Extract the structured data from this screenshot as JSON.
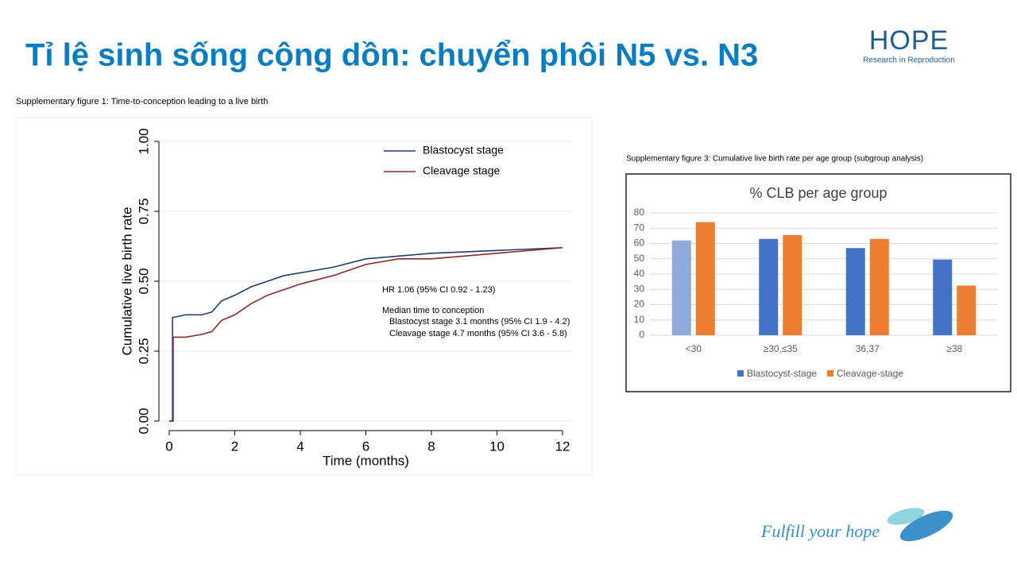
{
  "header": {
    "title": "Tỉ lệ sinh sống cộng dồn: chuyển phôi N5 vs. N3",
    "logo": "HOPE",
    "logo_subtitle": "Research in Reproduction"
  },
  "footer": {
    "slogan": "Fulfill your hope"
  },
  "chart_data": [
    {
      "type": "line",
      "caption": "Supplementary figure 1: Time-to-conception leading to a live birth",
      "x_label": "Time (months)",
      "y_label": "Cumulative live birth rate",
      "xlim": [
        0,
        12
      ],
      "xticks": [
        0,
        2,
        4,
        6,
        8,
        10,
        12
      ],
      "ylim": [
        0,
        1
      ],
      "yticks": [
        {
          "value": 0,
          "label": "0.00"
        },
        {
          "value": 0.25,
          "label": "0.25"
        },
        {
          "value": 0.5,
          "label": "0.50"
        },
        {
          "value": 0.75,
          "label": "0.75"
        },
        {
          "value": 1,
          "label": "1.00"
        }
      ],
      "grid": true,
      "series": [
        {
          "name": "Blastocyst stage",
          "color": "#1f3d6e",
          "x": [
            0,
            0.1,
            0.1,
            0.5,
            1,
            1.3,
            1.6,
            2,
            2.5,
            3,
            3.5,
            4,
            5,
            6,
            7,
            8,
            10,
            12
          ],
          "values": [
            0,
            0,
            0.37,
            0.38,
            0.38,
            0.39,
            0.43,
            0.45,
            0.48,
            0.5,
            0.52,
            0.53,
            0.55,
            0.58,
            0.59,
            0.6,
            0.61,
            0.62
          ]
        },
        {
          "name": "Cleavage stage",
          "color": "#8b2a2a",
          "x": [
            0,
            0.12,
            0.12,
            0.5,
            1,
            1.3,
            1.6,
            2,
            2.5,
            3,
            3.5,
            4,
            5,
            6,
            7,
            8,
            10,
            12
          ],
          "values": [
            0,
            0,
            0.3,
            0.3,
            0.31,
            0.32,
            0.36,
            0.38,
            0.42,
            0.45,
            0.47,
            0.49,
            0.52,
            0.56,
            0.58,
            0.58,
            0.6,
            0.62
          ]
        }
      ],
      "annotations": [
        "HR 1.06 (95% CI 0.92 - 1.23)",
        "Median time to conception",
        "Blastocyst stage 3.1 months (95% CI 1.9 - 4.2)",
        "Cleavage stage  4.7 months (95% CI 3.6 - 5.8)"
      ]
    },
    {
      "type": "bar",
      "caption": "Supplementary figure 3: Cumulative live birth rate per age group  (subgroup analysis)",
      "title": "% CLB per age group",
      "categories": [
        "<30",
        "≥30,≤35",
        "36,37",
        "≥38"
      ],
      "ylim": [
        0,
        80
      ],
      "yticks": [
        0,
        10,
        20,
        30,
        40,
        50,
        60,
        70,
        80
      ],
      "grid": true,
      "series": [
        {
          "name": "Blastocyst-stage",
          "color": "#4472c4",
          "colors": [
            "#8faadc",
            "#4472c4",
            "#4472c4",
            "#4472c4"
          ],
          "values": [
            62,
            63,
            57,
            49.5
          ]
        },
        {
          "name": "Cleavage-stage",
          "color": "#ed7d31",
          "values": [
            74,
            65.5,
            63,
            32.5
          ]
        }
      ]
    }
  ]
}
